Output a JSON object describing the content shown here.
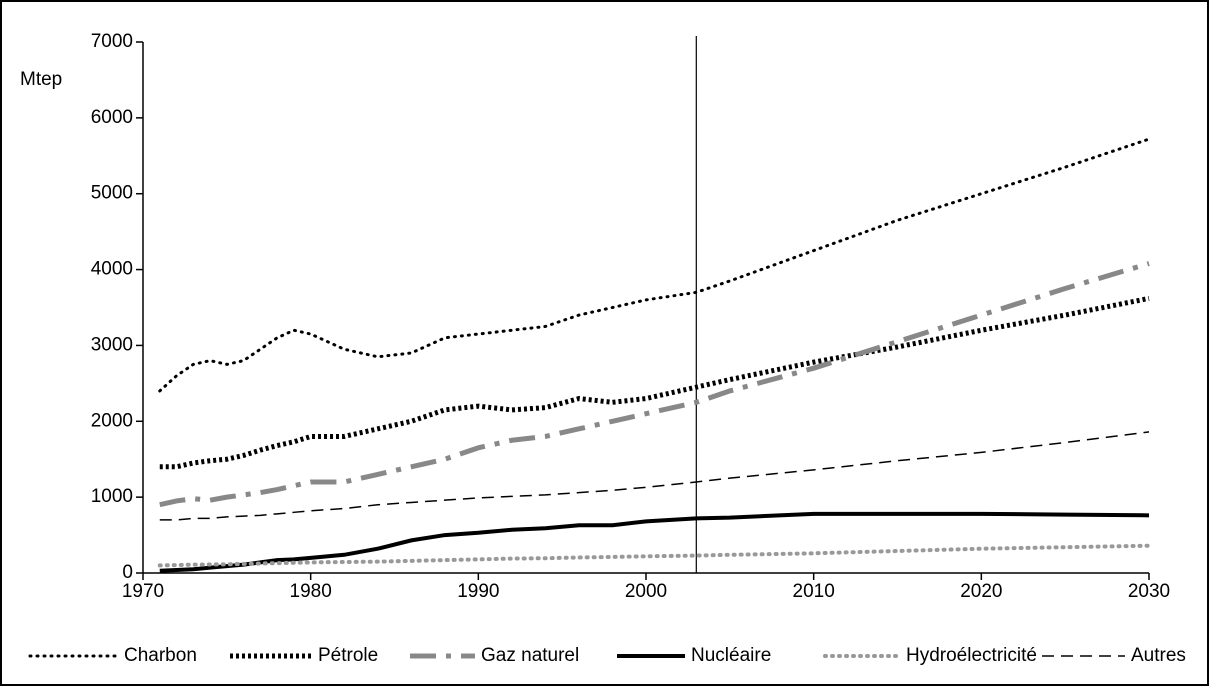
{
  "chart_data": {
    "type": "line",
    "ylabel": "Mtep",
    "x": [
      1971,
      1972,
      1973,
      1974,
      1975,
      1976,
      1977,
      1978,
      1979,
      1980,
      1982,
      1984,
      1986,
      1988,
      1990,
      1992,
      1994,
      1996,
      1998,
      2000,
      2003,
      2005,
      2010,
      2015,
      2020,
      2025,
      2030
    ],
    "xlim": [
      1970,
      2030
    ],
    "xticks": [
      1970,
      1980,
      1990,
      2000,
      2010,
      2020,
      2030
    ],
    "ylim": [
      0,
      7000
    ],
    "yticks": [
      0,
      1000,
      2000,
      3000,
      4000,
      5000,
      6000,
      7000
    ],
    "vline": 2003,
    "series": [
      {
        "name": "Charbon",
        "color": "#000000",
        "width": 3,
        "dash": "1 6",
        "values": [
          2400,
          2600,
          2750,
          2800,
          2750,
          2800,
          2950,
          3100,
          3200,
          3150,
          2950,
          2850,
          2900,
          3100,
          3150,
          3200,
          3250,
          3400,
          3500,
          3600,
          3700,
          3850,
          4250,
          4650,
          5000,
          5350,
          5720
        ]
      },
      {
        "name": "Pétrole",
        "color": "#000000",
        "width": 5,
        "dash": "3 3",
        "values": [
          1400,
          1400,
          1450,
          1480,
          1500,
          1550,
          1620,
          1680,
          1730,
          1800,
          1800,
          1900,
          2000,
          2150,
          2200,
          2150,
          2180,
          2300,
          2250,
          2300,
          2450,
          2550,
          2780,
          2980,
          3200,
          3400,
          3620
        ]
      },
      {
        "name": "Gaz naturel",
        "color": "#888888",
        "width": 5,
        "dash": "26 10 5 10",
        "values": [
          900,
          950,
          980,
          960,
          1000,
          1030,
          1060,
          1100,
          1150,
          1200,
          1200,
          1300,
          1400,
          1500,
          1650,
          1750,
          1800,
          1900,
          2000,
          2100,
          2250,
          2400,
          2700,
          3050,
          3400,
          3750,
          4080
        ]
      },
      {
        "name": "Nucléaire",
        "color": "#000000",
        "width": 4,
        "dash": "none",
        "values": [
          30,
          40,
          50,
          70,
          90,
          110,
          140,
          170,
          180,
          200,
          240,
          320,
          430,
          500,
          530,
          570,
          590,
          630,
          630,
          680,
          720,
          730,
          780,
          780,
          780,
          770,
          760
        ]
      },
      {
        "name": "Hydroélectricité",
        "color": "#999999",
        "width": 4,
        "dash": "1 6",
        "values": [
          100,
          105,
          110,
          112,
          115,
          120,
          125,
          130,
          135,
          140,
          145,
          150,
          160,
          170,
          180,
          190,
          195,
          205,
          212,
          220,
          230,
          240,
          260,
          290,
          320,
          340,
          360
        ]
      },
      {
        "name": "Autres",
        "color": "#000000",
        "width": 1.5,
        "dash": "12 7",
        "values": [
          700,
          700,
          720,
          720,
          740,
          750,
          760,
          780,
          800,
          820,
          850,
          900,
          930,
          960,
          990,
          1010,
          1030,
          1060,
          1090,
          1130,
          1200,
          1250,
          1360,
          1480,
          1590,
          1720,
          1860
        ]
      }
    ],
    "legend": "bottom"
  }
}
